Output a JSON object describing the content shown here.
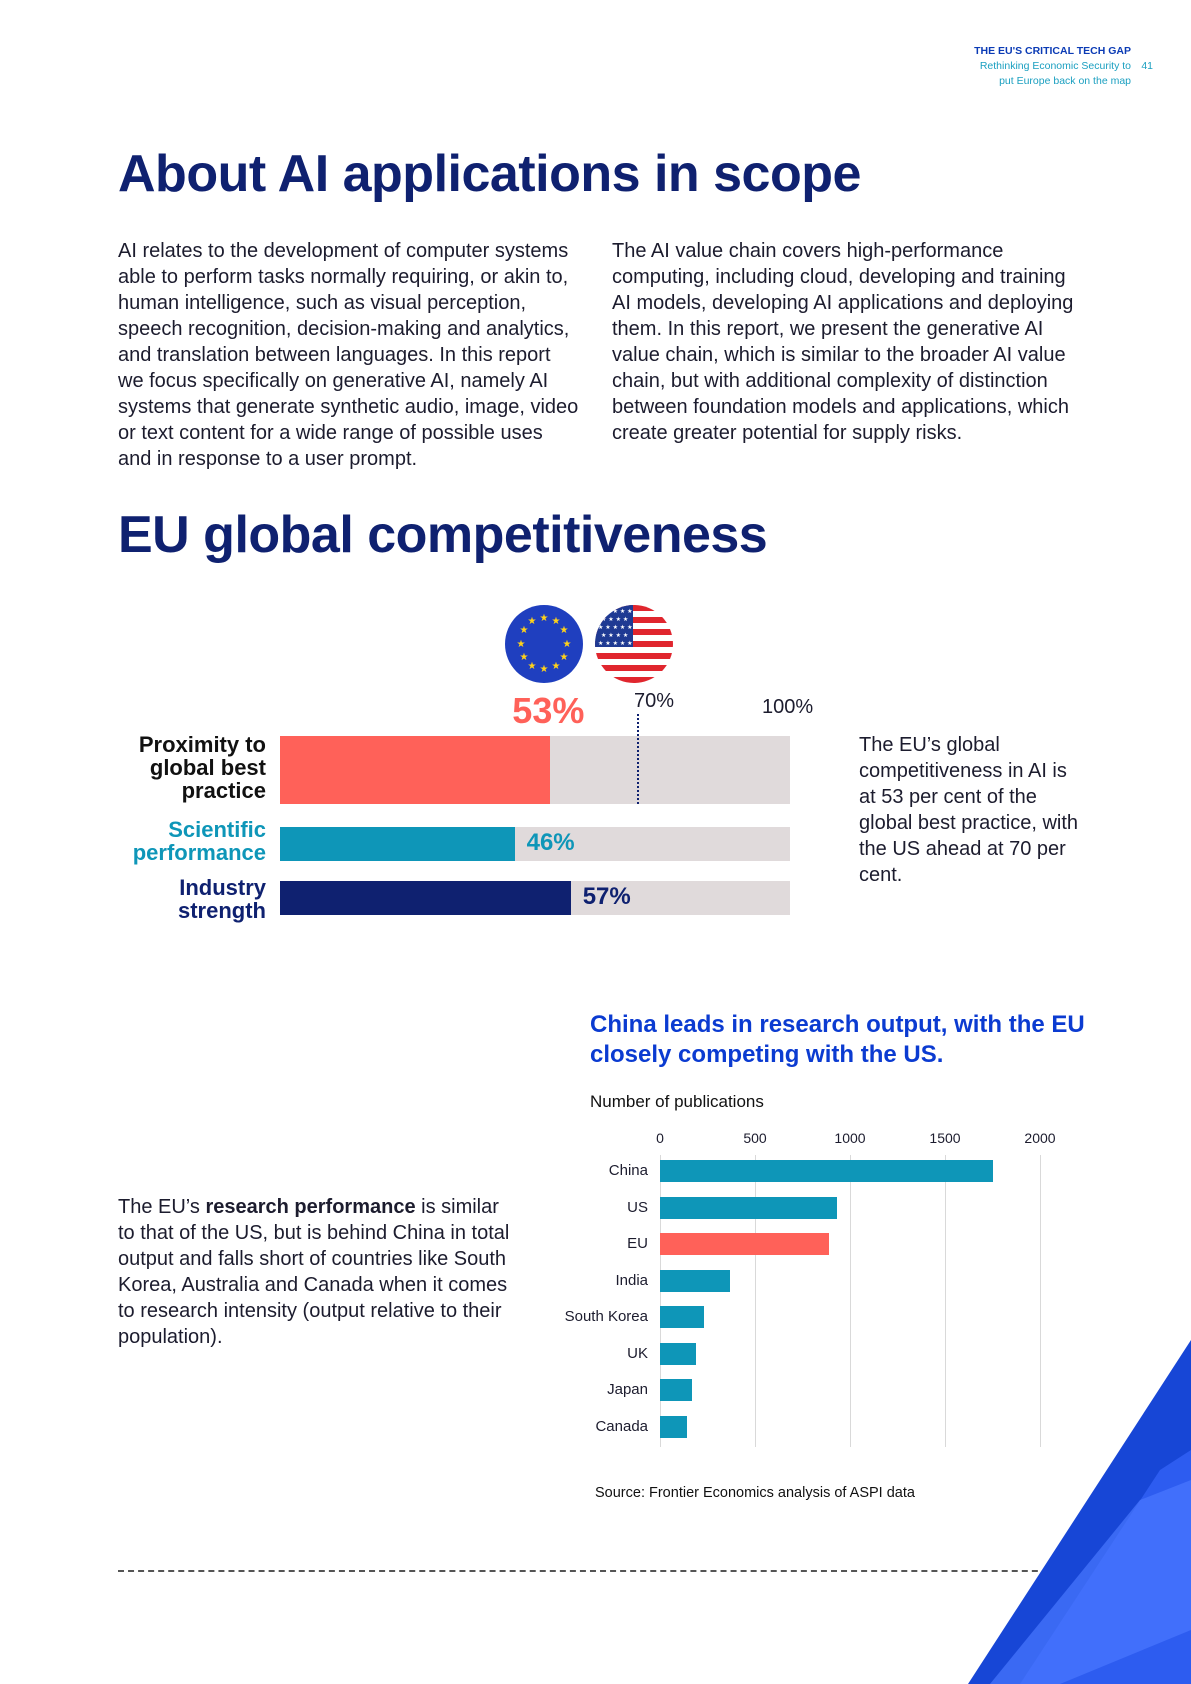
{
  "header": {
    "title": "THE EU'S CRITICAL TECH GAP",
    "subtitle_line1": "Rethinking Economic Security to",
    "subtitle_line2": "put Europe back on the map",
    "page_number": "41"
  },
  "section1": {
    "heading": "About AI applications in scope",
    "col1": "AI relates to the development of computer systems able to perform tasks normally requiring, or akin to, human intelligence, such as visual perception, speech recognition, decision-making and analytics, and translation between languages. In this report we focus specifically on generative AI, namely AI systems that generate synthetic audio, image, video or text content for a wide range of possible uses and in response to a user prompt.",
    "col2": "The AI value chain covers high-performance computing, including cloud, developing and training AI models, developing AI applications and deploying them. In this report, we present the generative AI value chain, which is similar to the broader AI value chain, but with additional complexity of distinction between foundation models and applications, which create greater potential for supply risks."
  },
  "section2": {
    "heading": "EU global competitiveness",
    "side_text": "The EU’s global competitiveness in AI is at 53 per cent of the global best practice, with the US ahead at 70 per cent.",
    "research_text_prefix": "The EU’s ",
    "research_text_bold": "research performance",
    "research_text_suffix": " is similar to that of the US, but is behind China in total output and falls short of countries like South Korea, Australia and Canada when it comes to research intensity (output relative to their population)."
  },
  "competitiveness": {
    "us_marker_label": "70%",
    "max_label": "100%",
    "us_marker_value": 70,
    "max": 100,
    "colors": {
      "proximity": "#ff6159",
      "scientific": "#0e96b8",
      "industry": "#0f2170",
      "track": "#e0dadb"
    },
    "rows": [
      {
        "label_line1": "Proximity to",
        "label_line2": "global best",
        "label_line3": "practice",
        "value": 53,
        "value_label": "53%"
      },
      {
        "label_line1": "Scientific",
        "label_line2": "performance",
        "value": 46,
        "value_label": "46%"
      },
      {
        "label_line1": "Industry",
        "label_line2": "strength",
        "value": 57,
        "value_label": "57%"
      }
    ]
  },
  "chart_data": {
    "type": "bar",
    "orientation": "horizontal",
    "title": "China leads in research output, with the EU closely competing with the US.",
    "xlabel": "Number of publications",
    "xlim": [
      0,
      2000
    ],
    "x_ticks": [
      "0",
      "500",
      "1000",
      "1500",
      "2000"
    ],
    "categories": [
      "China",
      "US",
      "EU",
      "India",
      "South Korea",
      "UK",
      "Japan",
      "Canada"
    ],
    "values": [
      1750,
      930,
      890,
      370,
      230,
      190,
      170,
      140
    ],
    "colors": {
      "default": "#0e96b8",
      "highlight": "#ff6159"
    },
    "highlight_category": "EU",
    "grid": true,
    "source": "Source: Frontier Economics analysis of ASPI data"
  }
}
